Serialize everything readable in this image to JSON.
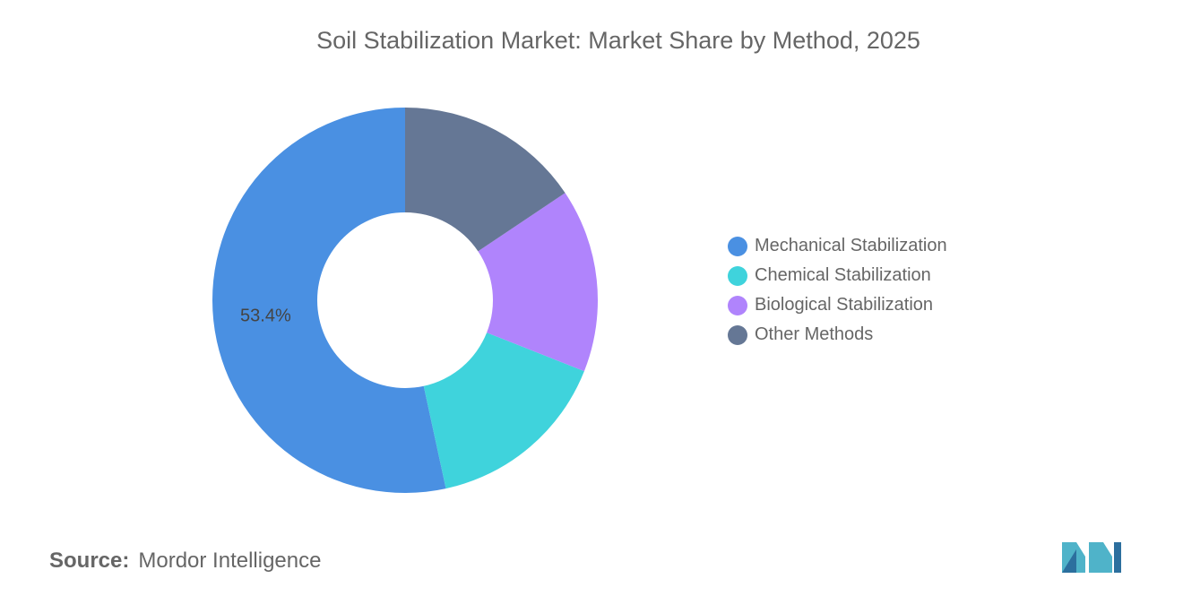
{
  "chart_data": {
    "type": "pie",
    "title": "Soil Stabilization Market: Market Share by Method, 2025",
    "donut": true,
    "categories": [
      "Mechanical Stabilization",
      "Chemical Stabilization",
      "Biological Stabilization",
      "Other Methods"
    ],
    "values": [
      53.4,
      15.6,
      15.4,
      15.6
    ],
    "unit": "%",
    "data_labels": [
      "53.4%",
      "",
      "",
      ""
    ],
    "colors": [
      "#4a90e2",
      "#3fd3dc",
      "#b084fc",
      "#657795"
    ],
    "legend_position": "right"
  },
  "source": {
    "label": "Source:",
    "value": "Mordor Intelligence"
  },
  "logo_text": "Mordor Intelligence"
}
